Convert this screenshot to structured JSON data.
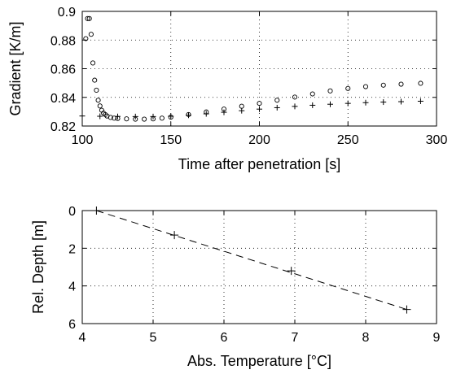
{
  "chart_data": [
    {
      "type": "scatter",
      "xlabel": "Time after penetration [s]",
      "ylabel": "Gradient [K/m]",
      "xlim": [
        100,
        300
      ],
      "ylim": [
        0.82,
        0.9
      ],
      "xticks": [
        "100",
        "150",
        "200",
        "250",
        "300"
      ],
      "yticks": [
        "0.82",
        "0.84",
        "0.86",
        "0.88",
        "0.9"
      ],
      "grid": true,
      "series": [
        {
          "marker": "circle",
          "x": [
            102,
            103,
            104,
            105,
            106,
            107,
            108,
            109,
            110,
            111,
            112,
            113,
            114,
            116,
            118,
            120,
            125,
            130,
            135,
            140,
            145,
            150,
            160,
            170,
            180,
            190,
            200,
            210,
            220,
            230,
            240,
            250,
            260,
            270,
            280,
            291
          ],
          "y": [
            0.881,
            0.895,
            0.895,
            0.884,
            0.864,
            0.852,
            0.845,
            0.838,
            0.834,
            0.831,
            0.829,
            0.828,
            0.827,
            0.826,
            0.8255,
            0.8253,
            0.825,
            0.8248,
            0.8248,
            0.825,
            0.8255,
            0.8262,
            0.828,
            0.8298,
            0.8318,
            0.8338,
            0.8358,
            0.838,
            0.8402,
            0.8424,
            0.8445,
            0.8462,
            0.8475,
            0.8485,
            0.8492,
            0.8498
          ]
        },
        {
          "marker": "plus",
          "x": [
            100,
            110,
            120,
            130,
            140,
            150,
            160,
            170,
            180,
            190,
            200,
            210,
            220,
            230,
            240,
            250,
            260,
            270,
            280,
            291
          ],
          "y": [
            0.827,
            0.8268,
            0.8267,
            0.8266,
            0.8266,
            0.8268,
            0.8275,
            0.8285,
            0.8296,
            0.8307,
            0.8318,
            0.8328,
            0.8337,
            0.8345,
            0.8352,
            0.8358,
            0.8363,
            0.8367,
            0.837,
            0.8373
          ]
        }
      ]
    },
    {
      "type": "scatter",
      "xlabel": "Abs. Temperature [°C]",
      "ylabel": "Rel. Depth [m]",
      "xlim": [
        4,
        9
      ],
      "ylim": [
        6,
        0
      ],
      "xticks": [
        "4",
        "5",
        "6",
        "7",
        "8",
        "9"
      ],
      "yticks": [
        "0",
        "2",
        "4",
        "6"
      ],
      "grid": true,
      "points": [
        {
          "x": 4.2,
          "y": 0.0
        },
        {
          "x": 5.3,
          "y": 1.3
        },
        {
          "x": 6.95,
          "y": 3.2
        },
        {
          "x": 8.58,
          "y": 5.25
        }
      ],
      "fit_line": {
        "x": [
          4.2,
          8.58
        ],
        "y": [
          0.0,
          5.25
        ],
        "style": "dashed"
      }
    }
  ]
}
